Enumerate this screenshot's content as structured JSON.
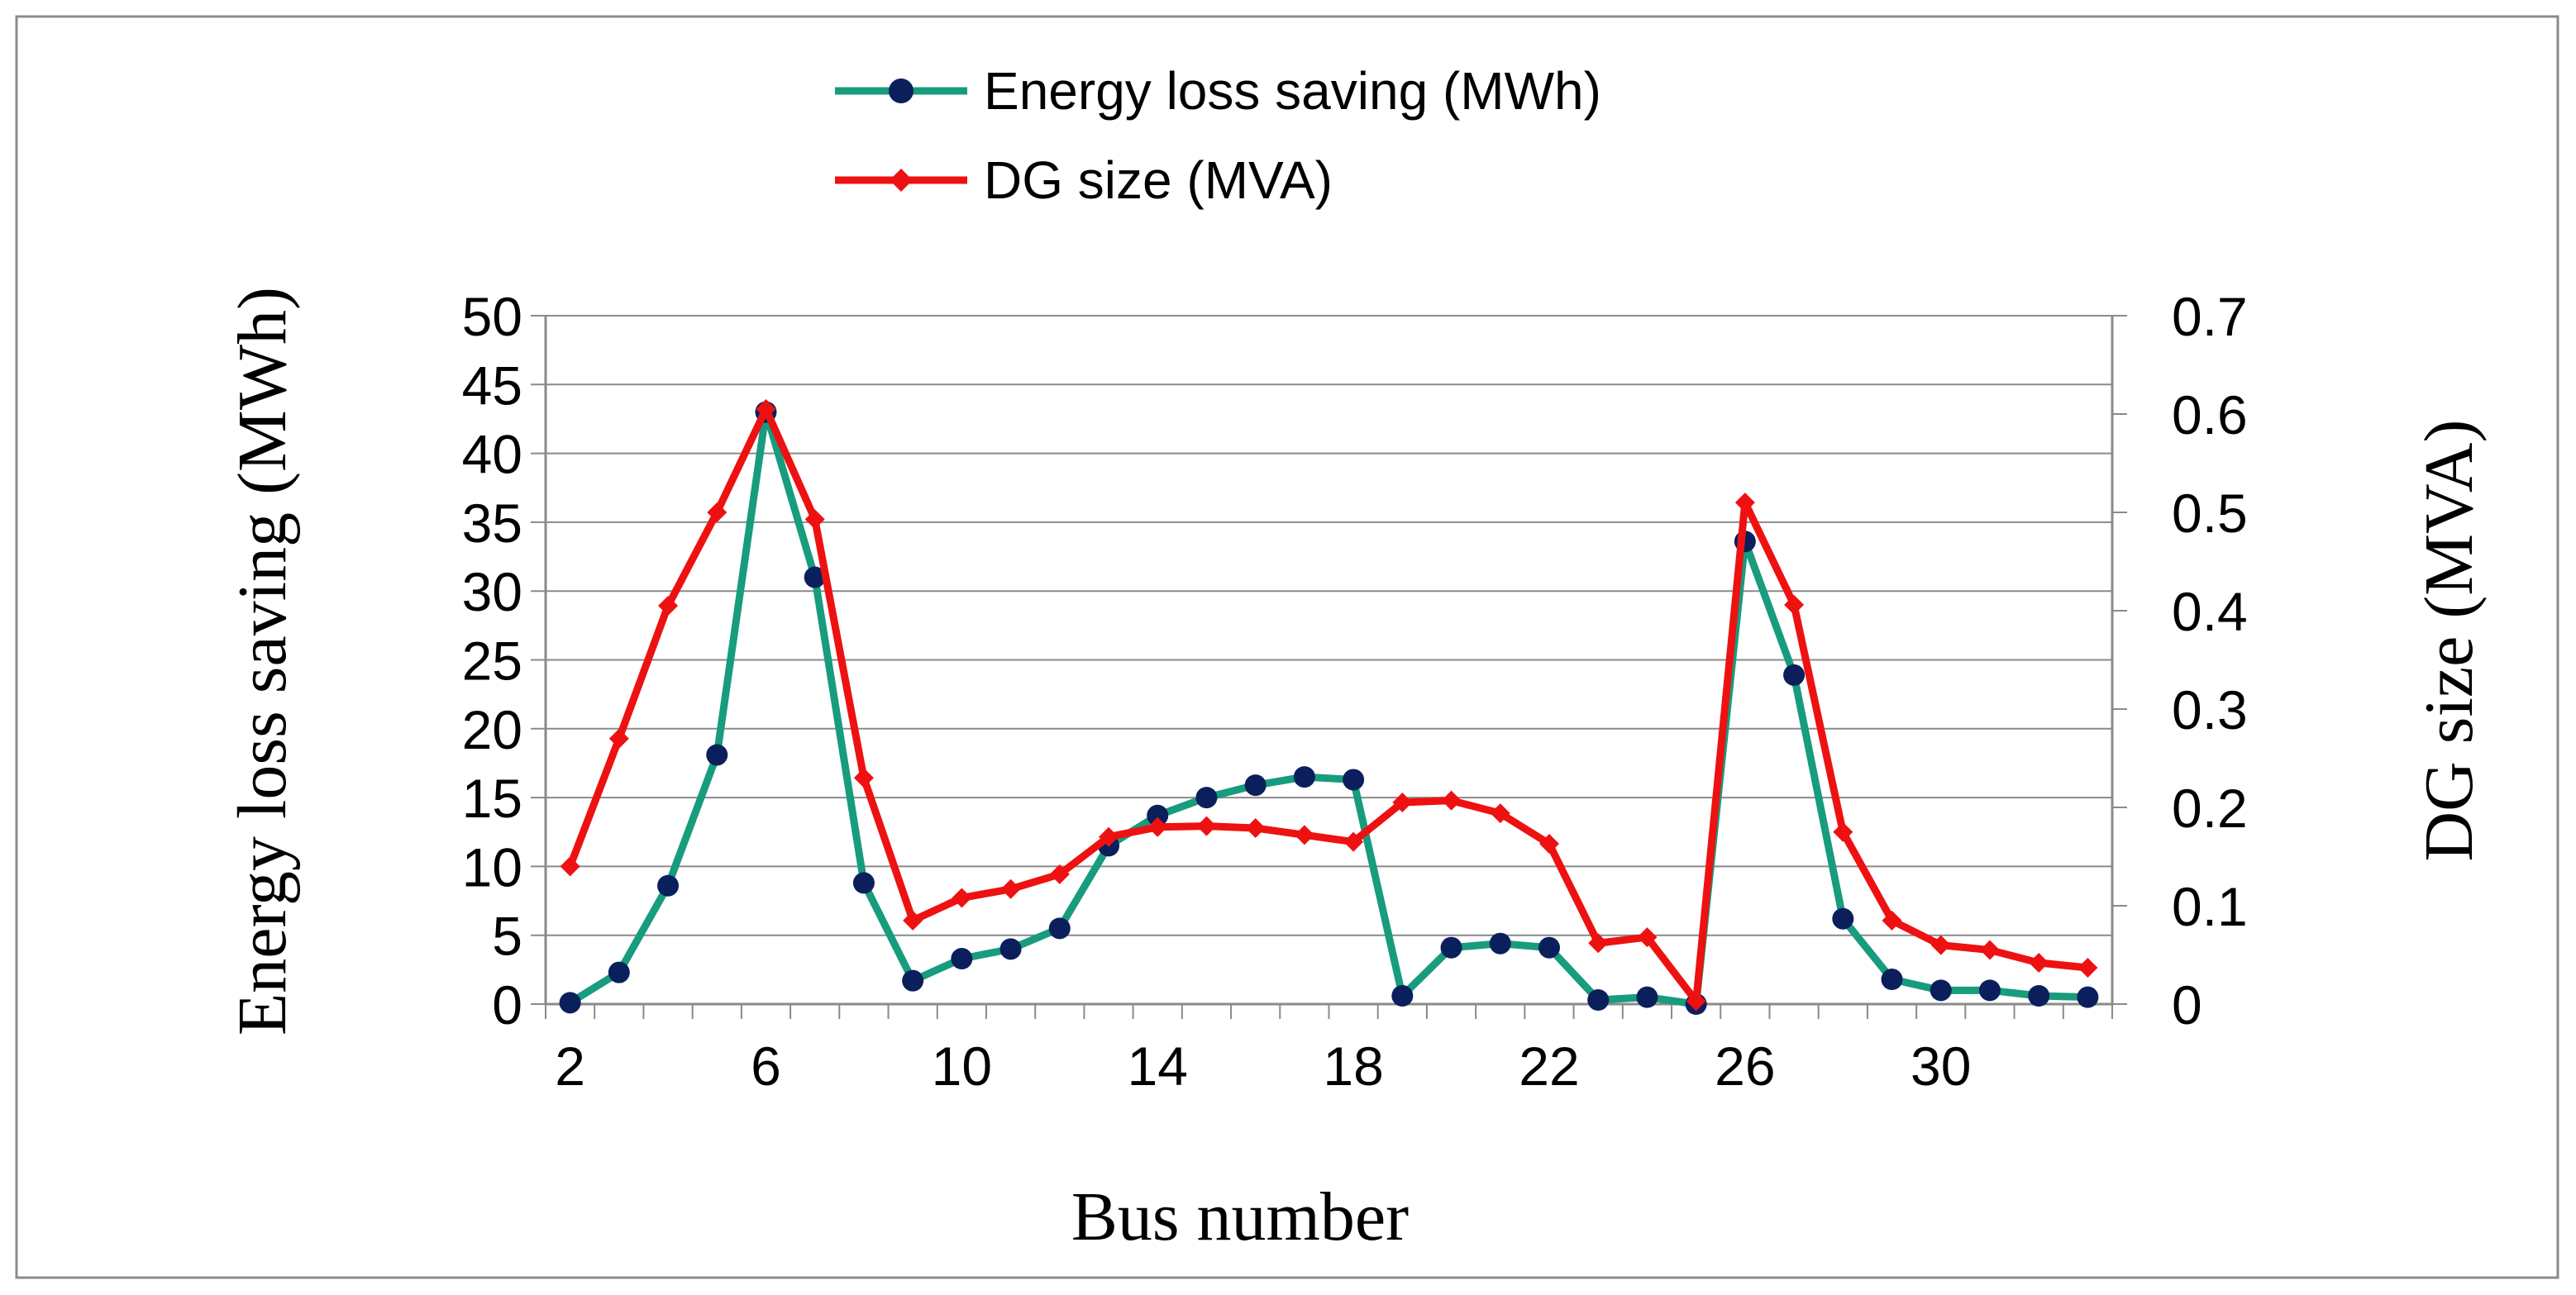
{
  "chart_data": {
    "type": "line",
    "xlabel": "Bus number",
    "ylabel": "Energy loss saving (MWh)",
    "y2label": "DG size (MVA)",
    "x": [
      2,
      3,
      4,
      5,
      6,
      7,
      8,
      9,
      10,
      11,
      12,
      13,
      14,
      15,
      16,
      17,
      18,
      19,
      20,
      21,
      22,
      23,
      24,
      25,
      26,
      27,
      28,
      29,
      30,
      31,
      32,
      33
    ],
    "x_tick_labels": [
      "2",
      "6",
      "10",
      "14",
      "18",
      "22",
      "26",
      "30"
    ],
    "ylim": [
      0,
      50
    ],
    "y_tick_labels": [
      "0",
      "5",
      "10",
      "15",
      "20",
      "25",
      "30",
      "35",
      "40",
      "45",
      "50"
    ],
    "y2lim": [
      0,
      0.7
    ],
    "y2_tick_labels": [
      "0",
      "0.1",
      "0.2",
      "0.3",
      "0.4",
      "0.5",
      "0.6",
      "0.7"
    ],
    "grid": true,
    "legend_position": "top-center",
    "series": [
      {
        "name": "Energy loss saving (MWh)",
        "axis": "left",
        "line_color": "#179c7d",
        "marker_color": "#0a1f5c",
        "marker": "circle",
        "values": [
          0.1,
          2.3,
          8.6,
          18.1,
          43.0,
          31.0,
          8.8,
          1.7,
          3.3,
          4.0,
          5.5,
          11.5,
          13.7,
          15.0,
          15.9,
          16.5,
          16.3,
          0.6,
          4.1,
          4.4,
          4.1,
          0.3,
          0.5,
          0.0,
          33.6,
          23.9,
          6.2,
          1.8,
          1.0,
          1.0,
          0.6,
          0.5
        ]
      },
      {
        "name": "DG size (MVA)",
        "axis": "right",
        "line_color": "#ee1111",
        "marker_color": "#ee1111",
        "marker": "diamond",
        "values": [
          0.14,
          0.27,
          0.405,
          0.5,
          0.605,
          0.493,
          0.23,
          0.085,
          0.108,
          0.117,
          0.132,
          0.17,
          0.18,
          0.181,
          0.179,
          0.172,
          0.165,
          0.205,
          0.207,
          0.194,
          0.163,
          0.062,
          0.068,
          0.003,
          0.51,
          0.406,
          0.175,
          0.085,
          0.06,
          0.055,
          0.042,
          0.037
        ]
      }
    ]
  }
}
